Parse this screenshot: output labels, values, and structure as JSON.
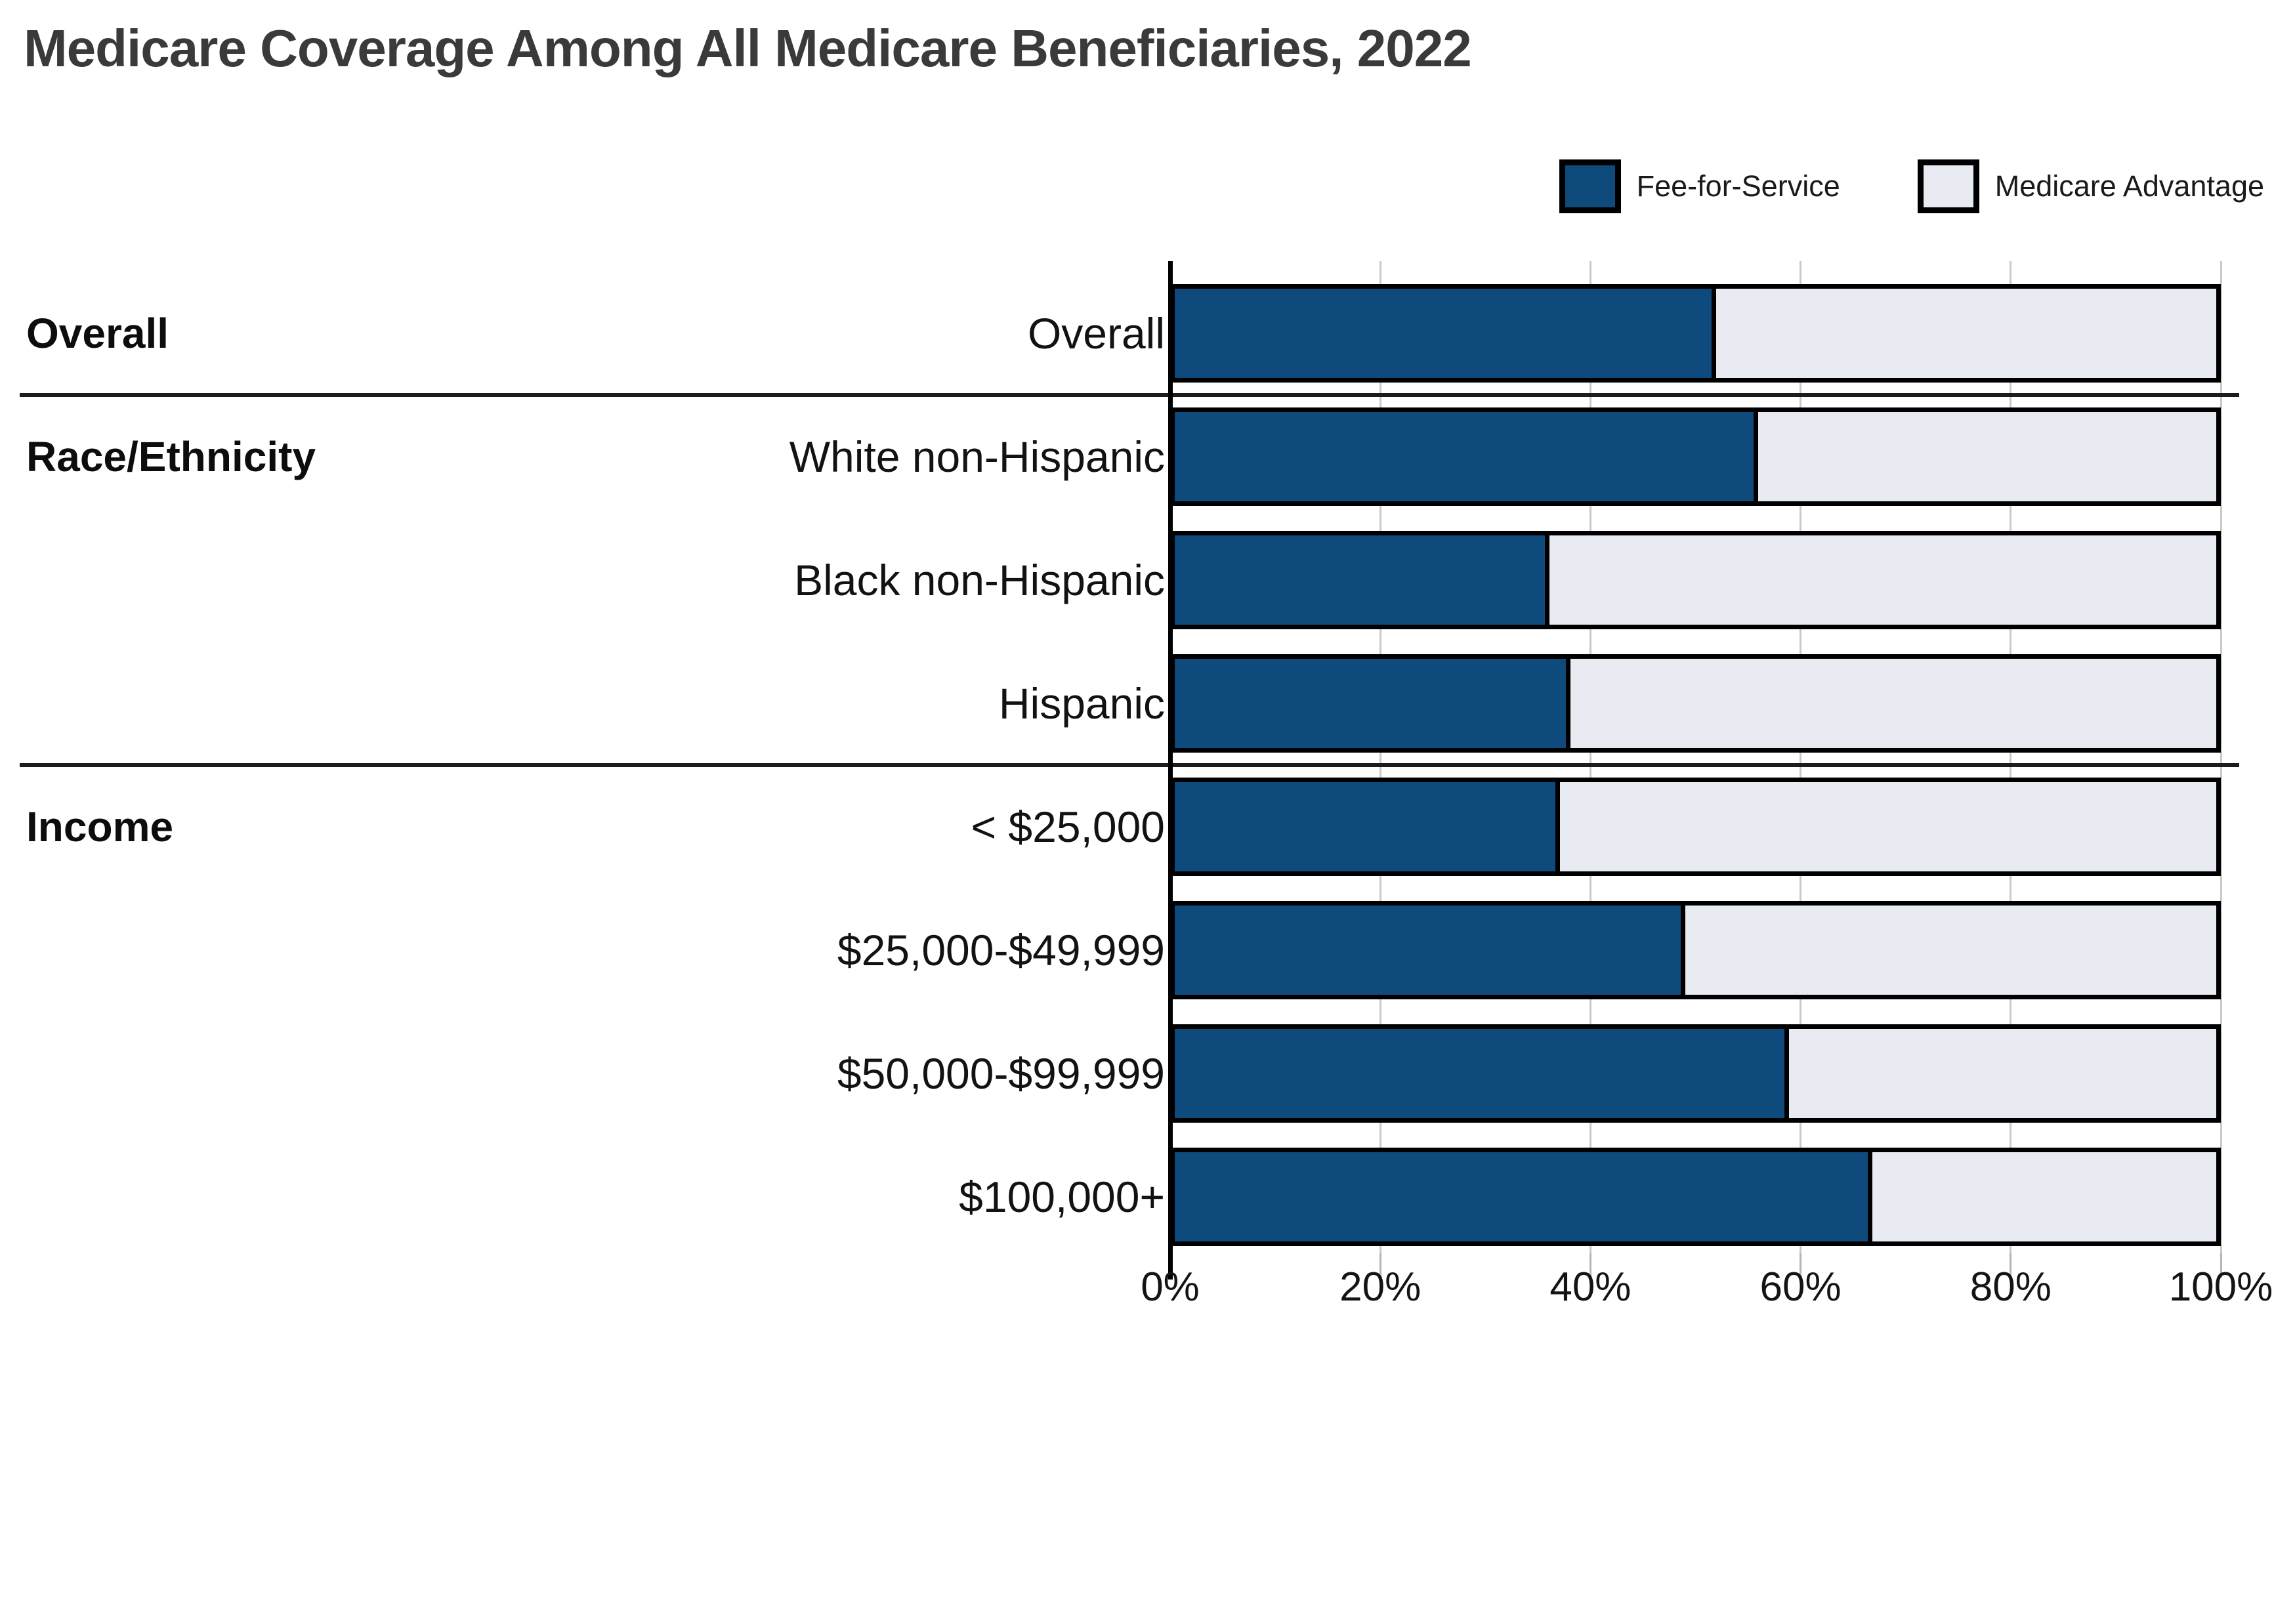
{
  "title": "Medicare Coverage Among All Medicare Beneficiaries, 2022",
  "legend": {
    "items": [
      {
        "label": "Fee-for-Service",
        "color": "#0f4a7c"
      },
      {
        "label": "Medicare Advantage",
        "color": "#e8ebf2"
      }
    ]
  },
  "colors": {
    "fee_for_service": "#0f4a7c",
    "medicare_advantage": "#e8ebf2",
    "bar_border": "#000000",
    "gridline": "#c9c9c9",
    "separator": "#1c1c1c",
    "title_text": "#3a3a3a"
  },
  "chart_data": {
    "type": "bar",
    "orientation": "horizontal",
    "stacked": true,
    "unit": "percent",
    "title": "Medicare Coverage Among All Medicare Beneficiaries, 2022",
    "categories": [
      "Overall",
      "White non-Hispanic",
      "Black non-Hispanic",
      "Hispanic",
      "< $25,000",
      "$25,000-$49,999",
      "$50,000-$99,999",
      "$100,000+"
    ],
    "groups": [
      {
        "label": "Overall",
        "categories": [
          "Overall"
        ]
      },
      {
        "label": "Race/Ethnicity",
        "categories": [
          "White non-Hispanic",
          "Black non-Hispanic",
          "Hispanic"
        ]
      },
      {
        "label": "Income",
        "categories": [
          "< $25,000",
          "$25,000-$49,999",
          "$50,000-$99,999",
          "$100,000+"
        ]
      }
    ],
    "series": [
      {
        "name": "Fee-for-Service",
        "color": "#0f4a7c",
        "values": [
          52,
          56,
          36,
          38,
          37,
          49,
          59,
          67
        ]
      },
      {
        "name": "Medicare Advantage",
        "color": "#e8ebf2",
        "values": [
          48,
          44,
          64,
          62,
          63,
          51,
          41,
          33
        ]
      }
    ],
    "xlabel": "",
    "ylabel": "",
    "xlim": [
      0,
      100
    ],
    "x_ticks": [
      {
        "value": 0,
        "label": "0%"
      },
      {
        "value": 20,
        "label": "20%"
      },
      {
        "value": 40,
        "label": "40%"
      },
      {
        "value": 60,
        "label": "60%"
      },
      {
        "value": 80,
        "label": "80%"
      },
      {
        "value": 100,
        "label": "100%"
      }
    ],
    "grid": true,
    "legend_position": "top-right"
  }
}
